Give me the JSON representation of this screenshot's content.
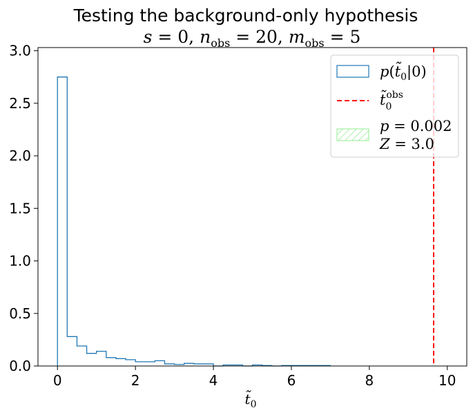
{
  "chart_data": {
    "type": "histogram",
    "title": "Testing the background-only hypothesis",
    "subtitle": "s = 0, n_obs = 20, m_obs = 5",
    "xlabel": "t̃₀",
    "ylabel": "",
    "xlim": [
      -0.5,
      10.5
    ],
    "ylim": [
      0,
      3.03
    ],
    "xticks": [
      "0",
      "2",
      "4",
      "6",
      "8",
      "10"
    ],
    "yticks": [
      "0.0",
      "0.5",
      "1.0",
      "1.5",
      "2.0",
      "2.5",
      "3.0"
    ],
    "grid": false,
    "legend_position": "top-right",
    "series": [
      {
        "name": "p(t̃₀|0)",
        "kind": "step-histogram",
        "color": "#1f77b4",
        "bin_width": 0.25,
        "bin_start": 0.0,
        "values": [
          2.75,
          0.28,
          0.19,
          0.12,
          0.14,
          0.08,
          0.07,
          0.06,
          0.04,
          0.04,
          0.05,
          0.02,
          0.015,
          0.025,
          0.02,
          0.02,
          0.0,
          0.01,
          0.01,
          0.0,
          0.01,
          0.005,
          0.0,
          0.005,
          0.005,
          0.005,
          0.005,
          0.005
        ]
      }
    ],
    "observed": {
      "name": "t̃₀^obs",
      "value": 9.65,
      "color": "#ff0000",
      "style": "dashed"
    },
    "p_value_region": {
      "p_label": "p = 0.002",
      "z_label": "Z = 3.0",
      "color": "#90ee90",
      "hatch": "diagonal"
    }
  }
}
